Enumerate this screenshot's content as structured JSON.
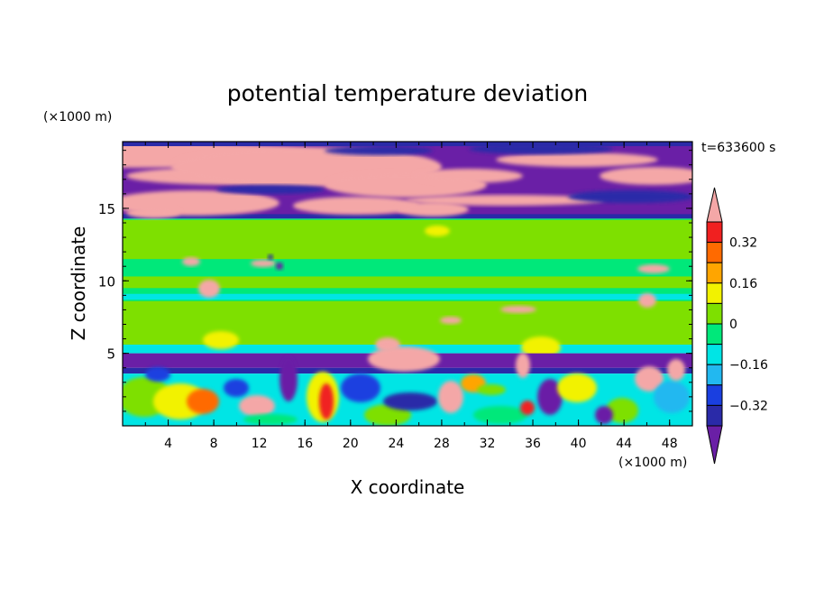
{
  "chart_data": {
    "type": "heatmap",
    "title": "potential temperature deviation",
    "time_label": "t=633600 s",
    "xlabel": "X coordinate",
    "ylabel": "Z coordinate",
    "x_unit": "(×1000 m)",
    "y_unit": "(×1000 m)",
    "xlim": [
      0,
      50
    ],
    "ylim": [
      0,
      19.6
    ],
    "x_ticks": [
      "4",
      "8",
      "12",
      "16",
      "20",
      "24",
      "28",
      "32",
      "36",
      "40",
      "44",
      "48"
    ],
    "y_ticks": [
      "5",
      "10",
      "15"
    ],
    "colorbar": {
      "levels": [
        -0.4,
        -0.32,
        -0.24,
        -0.16,
        -0.08,
        0,
        0.08,
        0.16,
        0.24,
        0.32,
        0.4
      ],
      "tick_labels": [
        "0.32",
        "0.16",
        "0",
        "−0.16",
        "−0.32"
      ],
      "colors": [
        "#6a1fa6",
        "#2a2aa8",
        "#1a3fe0",
        "#22b8f0",
        "#00e5e5",
        "#00e87a",
        "#7ee000",
        "#f2f200",
        "#ffa500",
        "#ff6a00",
        "#f02020",
        "#f4a7a7"
      ]
    },
    "bands": [
      {
        "z_range": [
          15.3,
          19.6
        ],
        "description_value": "upper layer, alternating warm (>0.4) and cold (<-0.4) streaks"
      },
      {
        "z_range": [
          14.3,
          15.3
        ],
        "value": -0.4
      },
      {
        "z_range": [
          5.0,
          14.3
        ],
        "value": 0.02
      },
      {
        "z_range": [
          4.0,
          5.0
        ],
        "value": -0.4
      },
      {
        "z_range": [
          0,
          4.0
        ],
        "description_value": "turbulent boundary layer, mixed positive and negative anomalies"
      }
    ]
  }
}
